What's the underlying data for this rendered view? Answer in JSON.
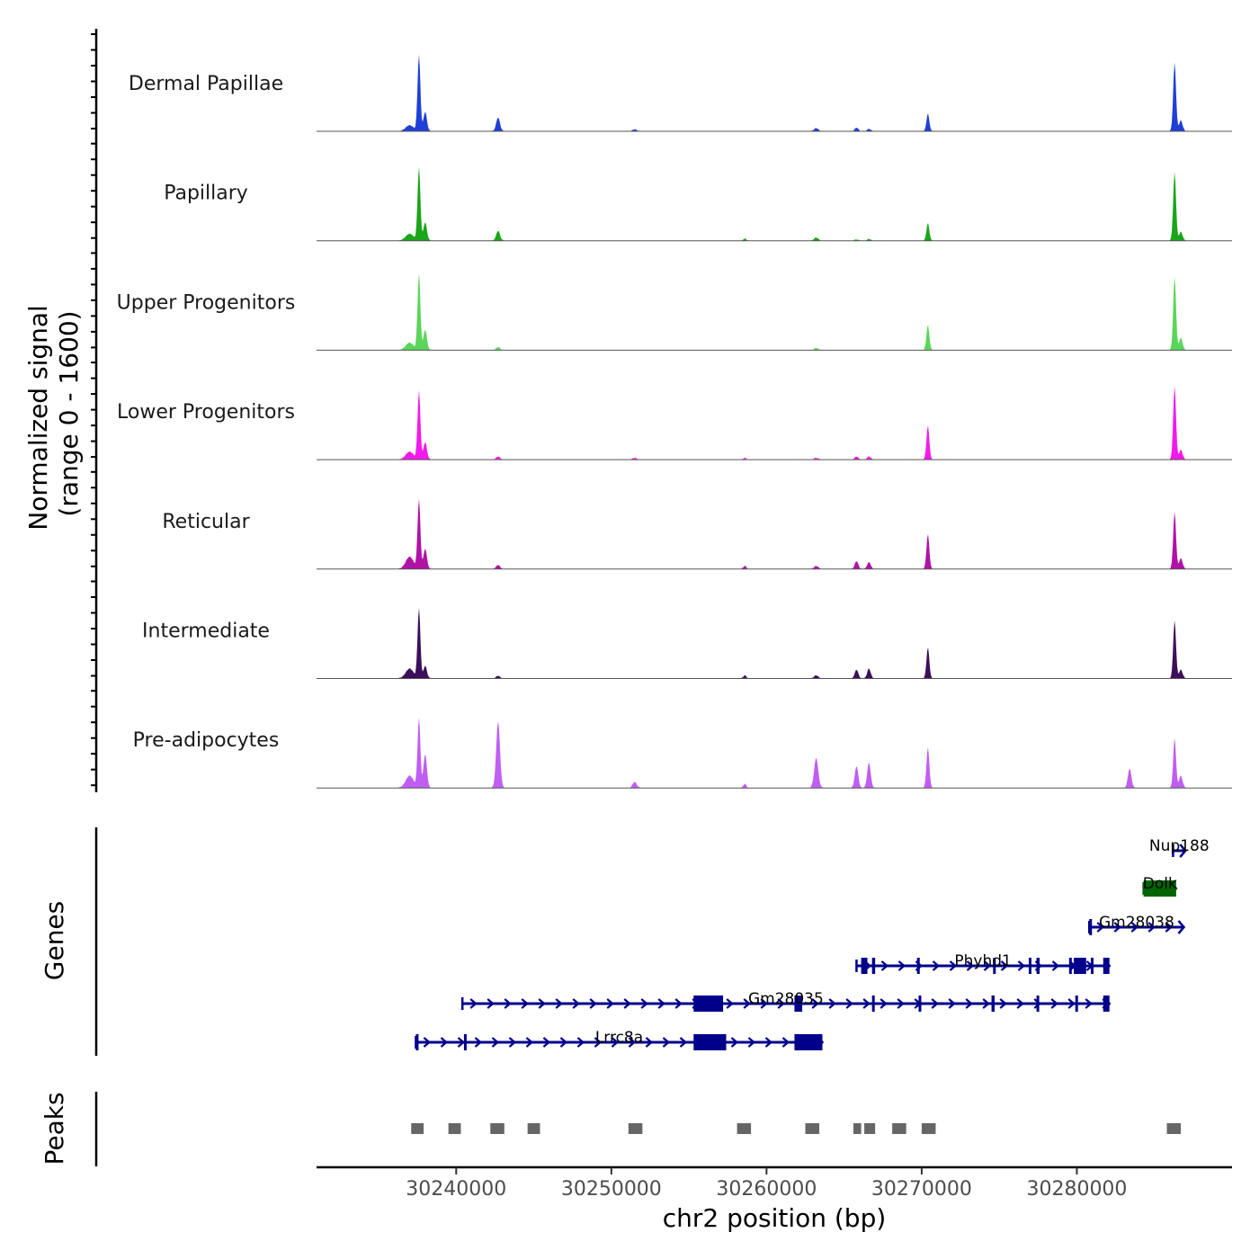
{
  "chart_data": {
    "type": "area",
    "title": "",
    "xlabel": "chr2 position (bp)",
    "ylabel": "Normalized signal\n(range 0 - 1600)",
    "ylabel_lines": [
      "Normalized signal",
      "(range 0 - 1600)"
    ],
    "signal_range": [
      0,
      1600
    ],
    "xlim": [
      30231000,
      30290000
    ],
    "xticks": [
      30240000,
      30250000,
      30260000,
      30270000,
      30280000
    ],
    "xtick_labels": [
      "30240000",
      "30250000",
      "30260000",
      "30270000",
      "30280000"
    ],
    "panel_titles": {
      "genes": "Genes",
      "peaks": "Peaks"
    },
    "peak_shapes": [
      {
        "center": 30237600,
        "width": 90
      },
      {
        "center": 30238000,
        "width": 110
      },
      {
        "center": 30237000,
        "width": 250
      },
      {
        "center": 30242700,
        "width": 120
      },
      {
        "center": 30251500,
        "width": 130
      },
      {
        "center": 30258600,
        "width": 90
      },
      {
        "center": 30263200,
        "width": 130
      },
      {
        "center": 30265800,
        "width": 110
      },
      {
        "center": 30266600,
        "width": 110
      },
      {
        "center": 30270400,
        "width": 90
      },
      {
        "center": 30283400,
        "width": 110
      },
      {
        "center": 30286300,
        "width": 90
      },
      {
        "center": 30286700,
        "width": 110
      }
    ],
    "series": [
      {
        "name": "Dermal Papillae",
        "color": "#1f3fd6",
        "values": [
          1580,
          400,
          120,
          280,
          35,
          0,
          60,
          70,
          45,
          360,
          0,
          1420,
          220
        ]
      },
      {
        "name": "Papillary",
        "color": "#1aa51a",
        "values": [
          1520,
          380,
          140,
          200,
          0,
          40,
          60,
          20,
          30,
          360,
          0,
          1420,
          180
        ]
      },
      {
        "name": "Upper Progenitors",
        "color": "#5ad65a",
        "values": [
          1580,
          420,
          150,
          60,
          0,
          0,
          40,
          0,
          0,
          520,
          0,
          1520,
          250
        ]
      },
      {
        "name": "Lower Progenitors",
        "color": "#f21aeb",
        "values": [
          1420,
          360,
          160,
          60,
          30,
          30,
          30,
          60,
          60,
          700,
          0,
          1520,
          200
        ]
      },
      {
        "name": "Reticular",
        "color": "#b012a6",
        "values": [
          1440,
          420,
          250,
          80,
          0,
          60,
          60,
          160,
          140,
          720,
          0,
          1180,
          220
        ]
      },
      {
        "name": "Intermediate",
        "color": "#3c0f5a",
        "values": [
          1450,
          260,
          200,
          50,
          0,
          60,
          60,
          180,
          200,
          640,
          0,
          1200,
          180
        ]
      },
      {
        "name": "Pre-adipocytes",
        "color": "#c05ef2",
        "values": [
          1450,
          700,
          250,
          1380,
          120,
          80,
          620,
          450,
          520,
          840,
          400,
          1030,
          250
        ]
      }
    ],
    "genes": [
      {
        "name": "Nup188",
        "start": 30286200,
        "end": 30287000,
        "strand": "+",
        "color": "#00008b",
        "exons": []
      },
      {
        "name": "Dolk",
        "start": 30284300,
        "end": 30286400,
        "strand": "-",
        "color": "#006400",
        "exons": [
          [
            30284300,
            30286400
          ]
        ]
      },
      {
        "name": "Gm28038",
        "start": 30280800,
        "end": 30286900,
        "strand": "+",
        "color": "#00008b",
        "exons": [
          [
            30280800,
            30280950
          ]
        ]
      },
      {
        "name": "Phyhd1",
        "start": 30265800,
        "end": 30282100,
        "strand": "+",
        "color": "#00008b",
        "exons": [
          [
            30266100,
            30266500
          ],
          [
            30266800,
            30267000
          ],
          [
            30269700,
            30269800
          ],
          [
            30274600,
            30274700
          ],
          [
            30276900,
            30277000
          ],
          [
            30277400,
            30277600
          ],
          [
            30279500,
            30279600
          ],
          [
            30279800,
            30280600
          ],
          [
            30280900,
            30281000
          ],
          [
            30281700,
            30282100
          ]
        ]
      },
      {
        "name": "Gm28035",
        "start": 30240400,
        "end": 30282100,
        "strand": "+",
        "color": "#00008b",
        "exons": [
          [
            30255300,
            30257200
          ],
          [
            30261800,
            30262300
          ],
          [
            30266800,
            30266900
          ],
          [
            30269800,
            30269900
          ],
          [
            30274500,
            30274700
          ],
          [
            30277400,
            30277500
          ],
          [
            30279900,
            30280000
          ],
          [
            30281700,
            30282100
          ]
        ]
      },
      {
        "name": "Lrrc8a",
        "start": 30237400,
        "end": 30263600,
        "strand": "+",
        "color": "#00008b",
        "exons": [
          [
            30237400,
            30237500
          ],
          [
            30240500,
            30240600
          ],
          [
            30255300,
            30257400
          ],
          [
            30261800,
            30263600
          ]
        ]
      }
    ],
    "peaks": [
      [
        30237100,
        30237900
      ],
      [
        30239500,
        30240300
      ],
      [
        30242200,
        30243100
      ],
      [
        30244600,
        30245400
      ],
      [
        30251100,
        30252000
      ],
      [
        30258100,
        30259000
      ],
      [
        30262500,
        30263400
      ],
      [
        30265600,
        30266100
      ],
      [
        30266300,
        30267000
      ],
      [
        30268100,
        30269000
      ],
      [
        30270000,
        30270900
      ],
      [
        30285800,
        30286700
      ]
    ]
  }
}
